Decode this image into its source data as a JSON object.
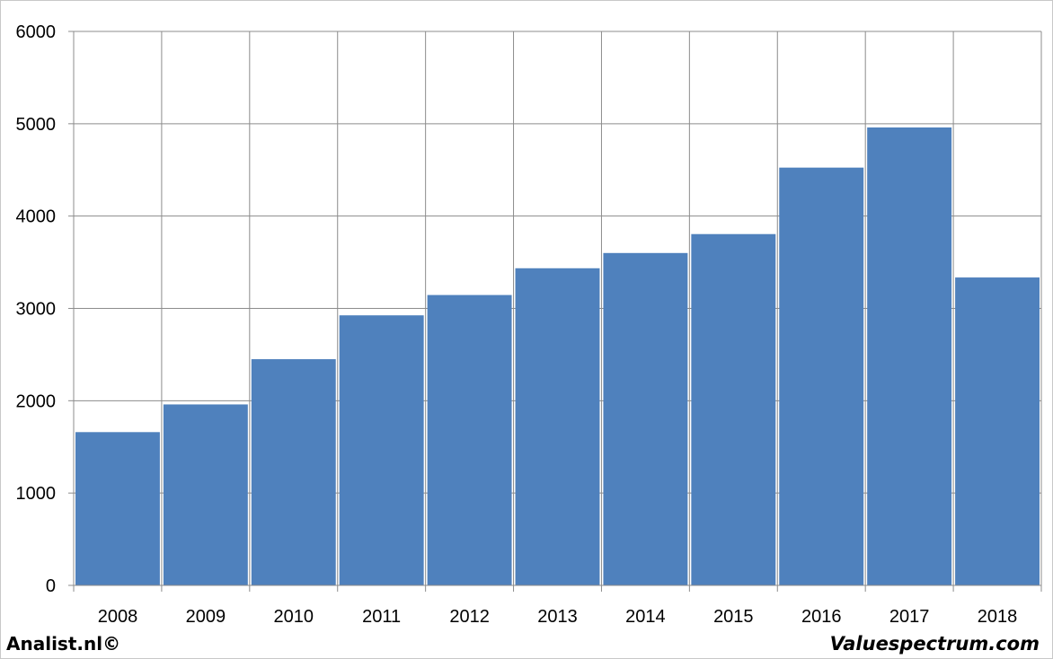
{
  "chart_data": {
    "type": "bar",
    "categories": [
      "2008",
      "2009",
      "2010",
      "2011",
      "2012",
      "2013",
      "2014",
      "2015",
      "2016",
      "2017",
      "2018"
    ],
    "values": [
      1660,
      1960,
      2450,
      2925,
      3145,
      3435,
      3600,
      3805,
      4525,
      4960,
      3335
    ],
    "title": "",
    "xlabel": "",
    "ylabel": "",
    "ylim": [
      0,
      6000
    ],
    "yticks": [
      "0",
      "1000",
      "2000",
      "3000",
      "4000",
      "5000",
      "6000"
    ],
    "grid": true,
    "legend": "none",
    "bar_color": "#4f81bd"
  },
  "footer": {
    "left_text": "Analist.nl©",
    "right_text": "Valuespectrum.com"
  }
}
